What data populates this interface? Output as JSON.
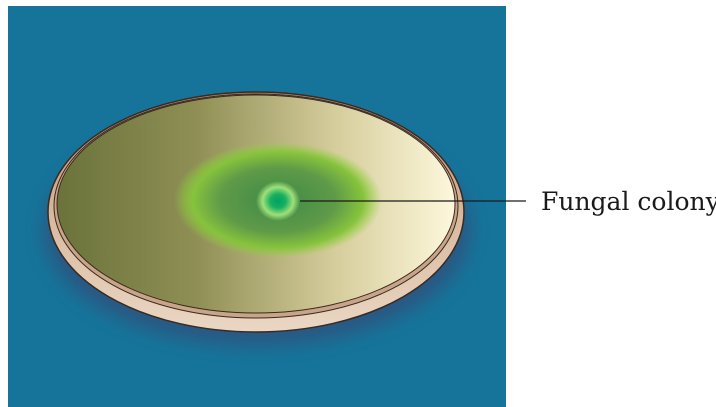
{
  "labels": {
    "colony": "Fungal colony"
  },
  "colors": {
    "background_panel": "#16749a",
    "plate_rim": "#c9a58a",
    "agar_dark": "#707a3c",
    "agar_light": "#fbf6d8",
    "colony_green": "#8ccd3c",
    "colony_center": "#0aa85a"
  }
}
